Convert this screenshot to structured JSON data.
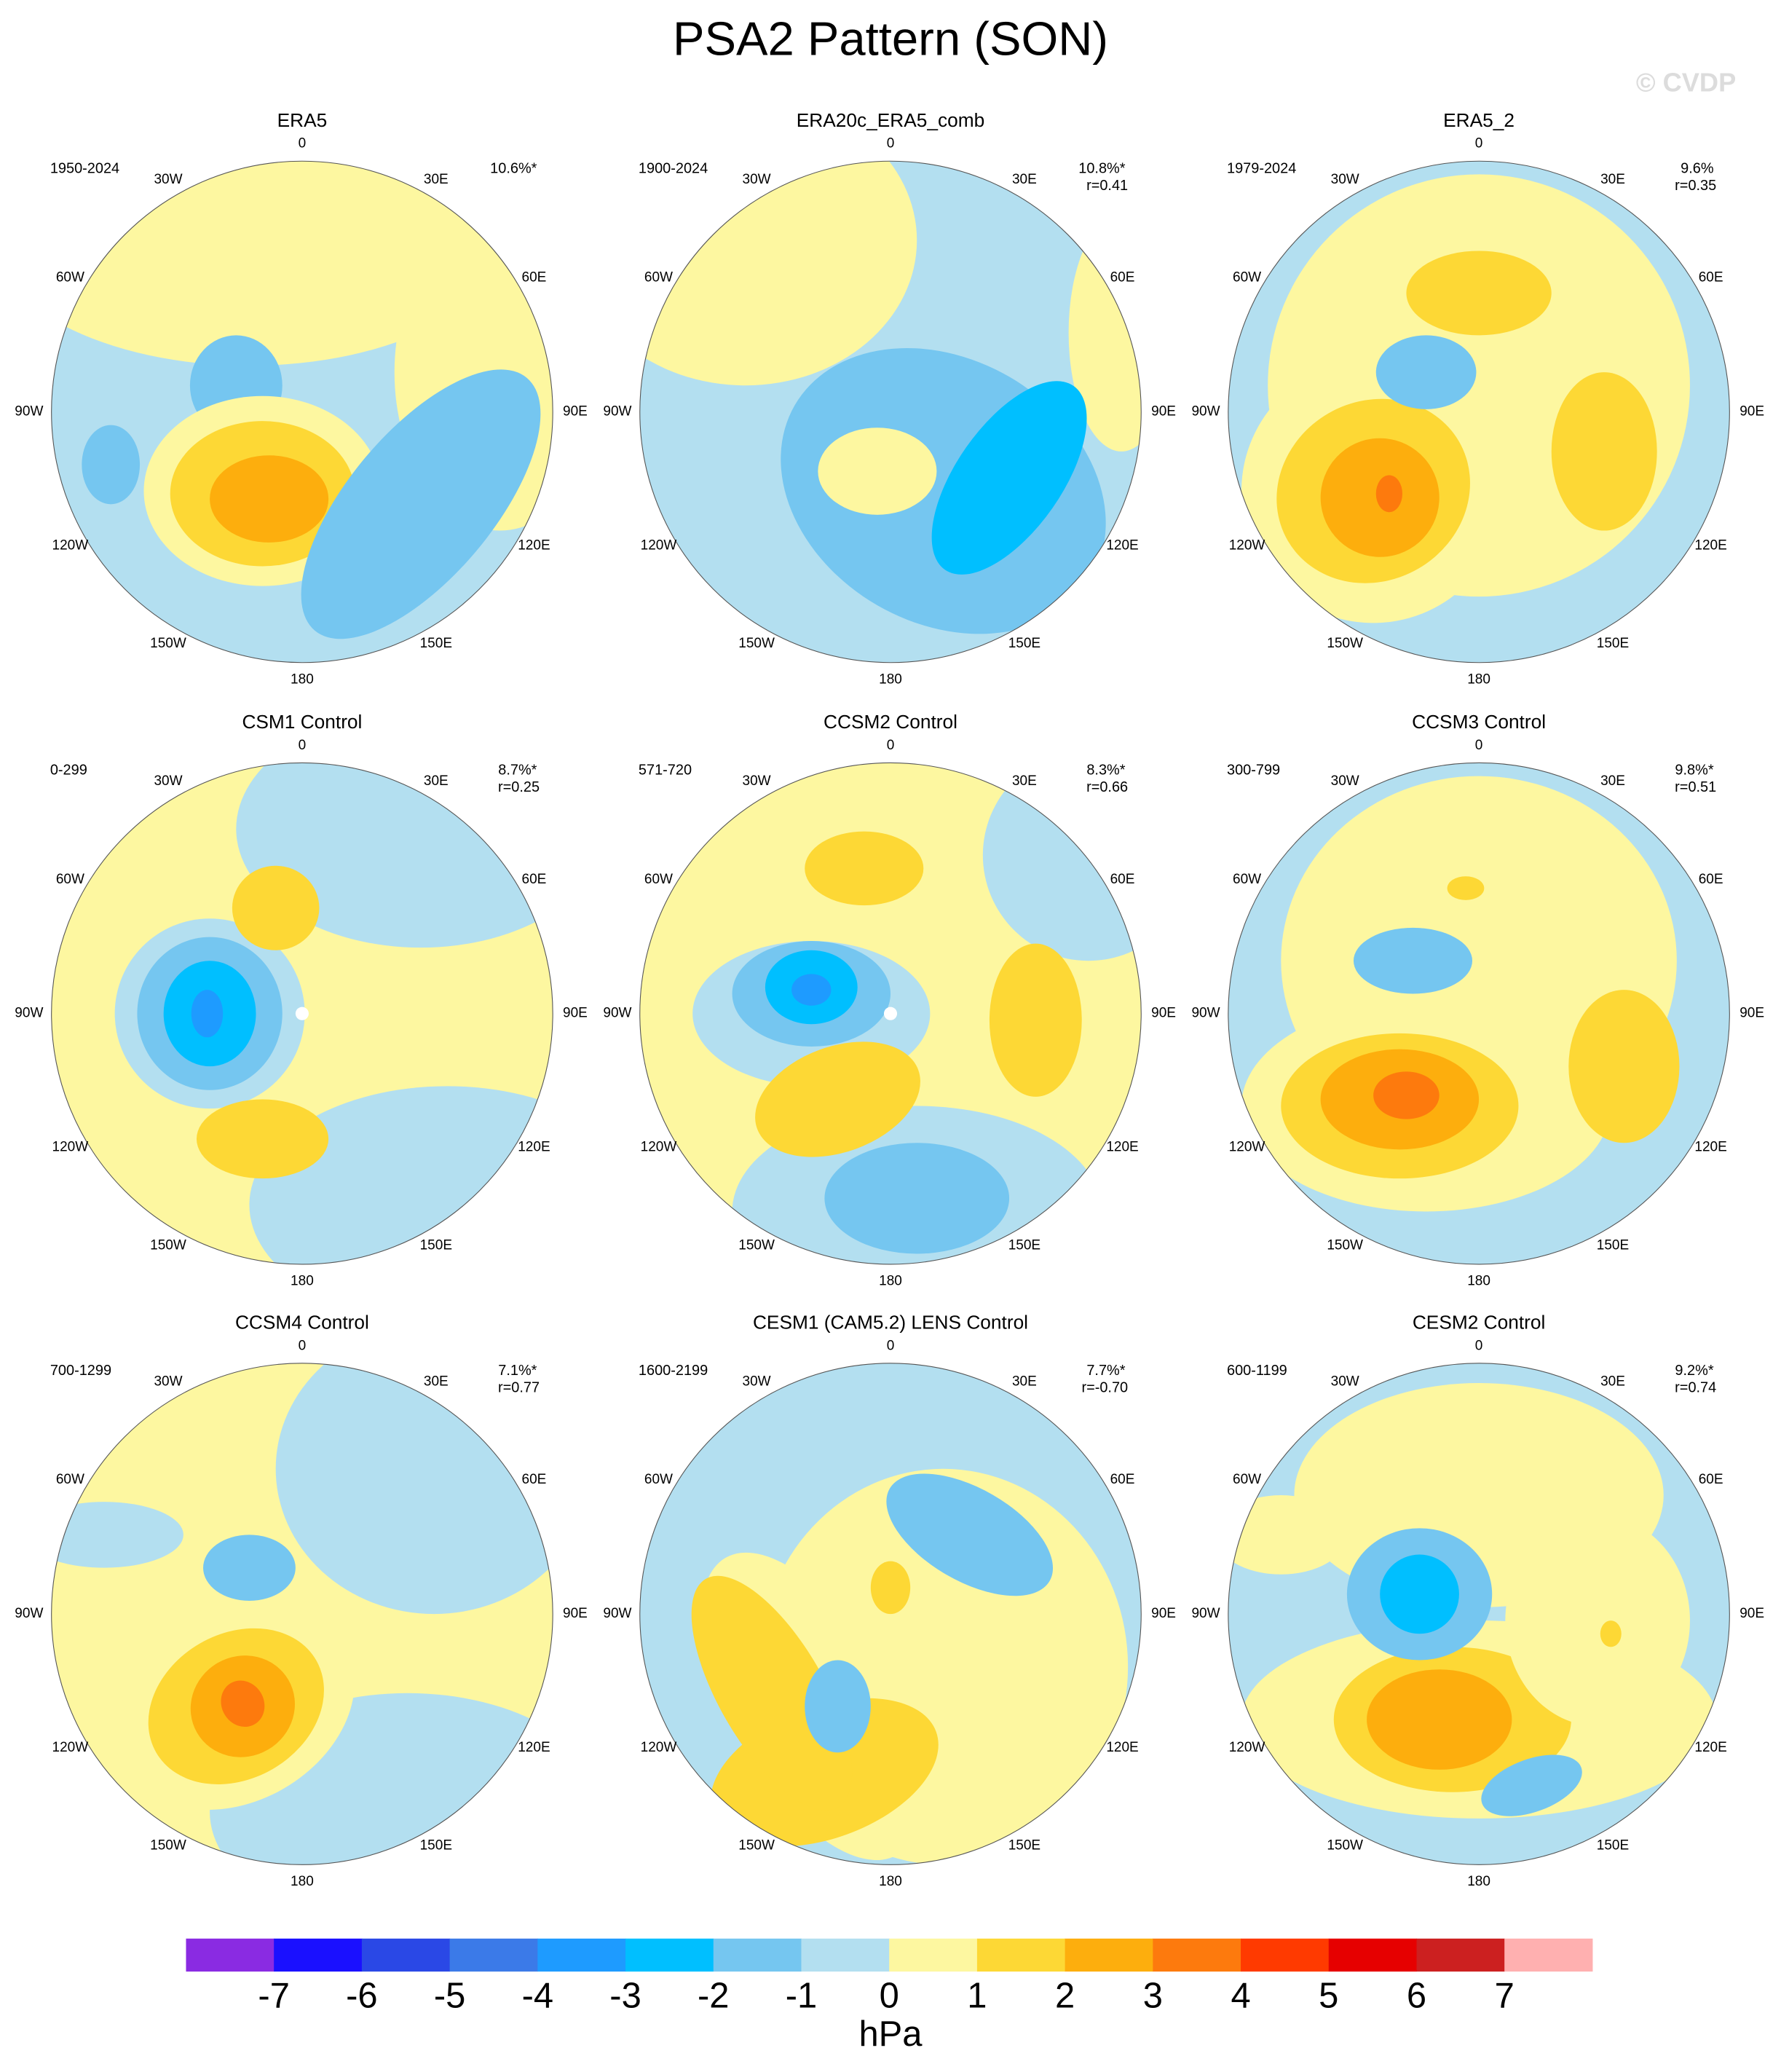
{
  "title": "PSA2 Pattern (SON)",
  "watermark": "© CVDP",
  "longitude_labels": [
    "0",
    "30E",
    "60E",
    "90E",
    "120E",
    "150E",
    "180",
    "150W",
    "120W",
    "90W",
    "60W",
    "30W"
  ],
  "panels": [
    {
      "title": "ERA5",
      "period": "1950-2024",
      "pct_variance": "10.6%*"
    },
    {
      "title": "ERA20c_ERA5_comb",
      "period": "1900-2024",
      "pct_variance": "10.8%*",
      "correlation": "r=0.41"
    },
    {
      "title": "ERA5_2",
      "period": "1979-2024",
      "pct_variance": "9.6%",
      "correlation": "r=0.35"
    },
    {
      "title": "CSM1 Control",
      "period": "0-299",
      "pct_variance": "8.7%*",
      "correlation": "r=0.25"
    },
    {
      "title": "CCSM2 Control",
      "period": "571-720",
      "pct_variance": "8.3%*",
      "correlation": "r=0.66"
    },
    {
      "title": "CCSM3 Control",
      "period": "300-799",
      "pct_variance": "9.8%*",
      "correlation": "r=0.51"
    },
    {
      "title": "CCSM4 Control",
      "period": "700-1299",
      "pct_variance": "7.1%*",
      "correlation": "r=0.77"
    },
    {
      "title": "CESM1 (CAM5.2) LENS Control",
      "period": "1600-2199",
      "pct_variance": "7.7%*",
      "correlation": "r=-0.70"
    },
    {
      "title": "CESM2 Control",
      "period": "600-1199",
      "pct_variance": "9.2%*",
      "correlation": "r=0.74"
    }
  ],
  "colorbar": {
    "colors": [
      "#8a2be2",
      "#1a10ff",
      "#2a48e6",
      "#3b7ae8",
      "#1e9bff",
      "#00bfff",
      "#75c6f0",
      "#b3dff0",
      "#fdf7a0",
      "#fdd835",
      "#fdae0d",
      "#fd7a0d",
      "#ff3a00",
      "#e60000",
      "#cc2020",
      "#ffb0b0"
    ],
    "ticks": [
      -7,
      -6,
      -5,
      -4,
      -3,
      -2,
      -1,
      0,
      1,
      2,
      3,
      4,
      5,
      6,
      7
    ],
    "unit": "hPa"
  }
}
